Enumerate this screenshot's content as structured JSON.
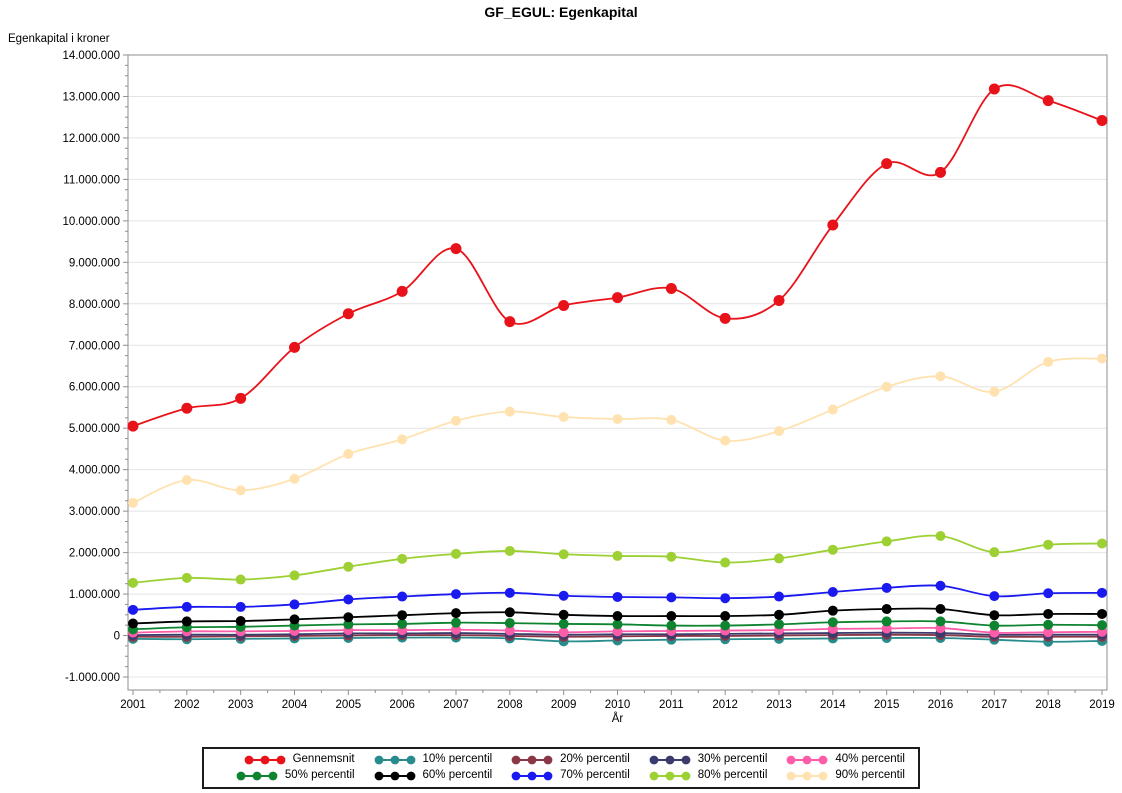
{
  "chart_data": {
    "type": "line",
    "title": "GF_EGUL: Egenkapital",
    "ylabel": "Egenkapital i kroner",
    "xlabel": "År",
    "x": [
      2001,
      2002,
      2003,
      2004,
      2005,
      2006,
      2007,
      2008,
      2009,
      2010,
      2011,
      2012,
      2013,
      2014,
      2015,
      2016,
      2017,
      2018,
      2019
    ],
    "ylim": [
      -1000000,
      14000000
    ],
    "ytick_step": 1000000,
    "grid": "horizontal-major",
    "legend_position": "bottom",
    "series": [
      {
        "name": "Gennemsnit",
        "color": "#e8131a",
        "values": [
          5050000,
          5480000,
          5720000,
          6950000,
          7760000,
          8300000,
          9330000,
          7570000,
          7960000,
          8150000,
          8370000,
          7650000,
          8080000,
          9900000,
          11380000,
          11170000,
          13180000,
          12900000,
          12420000
        ]
      },
      {
        "name": "10% percentil",
        "color": "#288c8c",
        "values": [
          -80000,
          -90000,
          -80000,
          -70000,
          -60000,
          -50000,
          -50000,
          -70000,
          -140000,
          -120000,
          -100000,
          -90000,
          -80000,
          -70000,
          -60000,
          -60000,
          -100000,
          -150000,
          -130000
        ]
      },
      {
        "name": "20% percentil",
        "color": "#8a3848",
        "values": [
          -30000,
          -30000,
          -20000,
          -10000,
          0,
          10000,
          10000,
          -10000,
          -30000,
          -20000,
          -10000,
          -10000,
          0,
          10000,
          20000,
          10000,
          -30000,
          -30000,
          -30000
        ]
      },
      {
        "name": "30% percentil",
        "color": "#3b3b6d",
        "values": [
          10000,
          20000,
          20000,
          30000,
          50000,
          50000,
          60000,
          40000,
          20000,
          30000,
          30000,
          40000,
          50000,
          60000,
          70000,
          60000,
          20000,
          20000,
          20000
        ]
      },
      {
        "name": "40% percentil",
        "color": "#fd5da8",
        "values": [
          70000,
          100000,
          100000,
          110000,
          130000,
          130000,
          140000,
          120000,
          80000,
          100000,
          110000,
          120000,
          130000,
          160000,
          170000,
          180000,
          70000,
          80000,
          90000
        ]
      },
      {
        "name": "50% percentil",
        "color": "#0e8431",
        "values": [
          150000,
          200000,
          210000,
          240000,
          270000,
          280000,
          310000,
          300000,
          280000,
          270000,
          240000,
          240000,
          270000,
          320000,
          340000,
          340000,
          240000,
          260000,
          250000
        ]
      },
      {
        "name": "60% percentil",
        "color": "#000000",
        "values": [
          290000,
          340000,
          350000,
          390000,
          440000,
          490000,
          540000,
          560000,
          500000,
          470000,
          470000,
          470000,
          500000,
          600000,
          640000,
          640000,
          490000,
          520000,
          520000
        ]
      },
      {
        "name": "70% percentil",
        "color": "#1a1af0",
        "values": [
          620000,
          690000,
          690000,
          750000,
          870000,
          940000,
          1000000,
          1030000,
          960000,
          930000,
          920000,
          900000,
          940000,
          1050000,
          1150000,
          1200000,
          950000,
          1020000,
          1030000
        ]
      },
      {
        "name": "80% percentil",
        "color": "#9cd033",
        "values": [
          1270000,
          1390000,
          1350000,
          1450000,
          1660000,
          1850000,
          1970000,
          2040000,
          1960000,
          1920000,
          1900000,
          1760000,
          1860000,
          2070000,
          2270000,
          2400000,
          2010000,
          2190000,
          2220000
        ]
      },
      {
        "name": "90% percentil",
        "color": "#ffe2b0",
        "values": [
          3200000,
          3750000,
          3500000,
          3780000,
          4380000,
          4730000,
          5180000,
          5400000,
          5270000,
          5220000,
          5200000,
          4700000,
          4930000,
          5450000,
          6000000,
          6250000,
          5880000,
          6600000,
          6680000
        ]
      }
    ],
    "colors": {
      "grid": "#e4e4e4",
      "axis": "#8e8e8e",
      "text": "#000000"
    }
  }
}
